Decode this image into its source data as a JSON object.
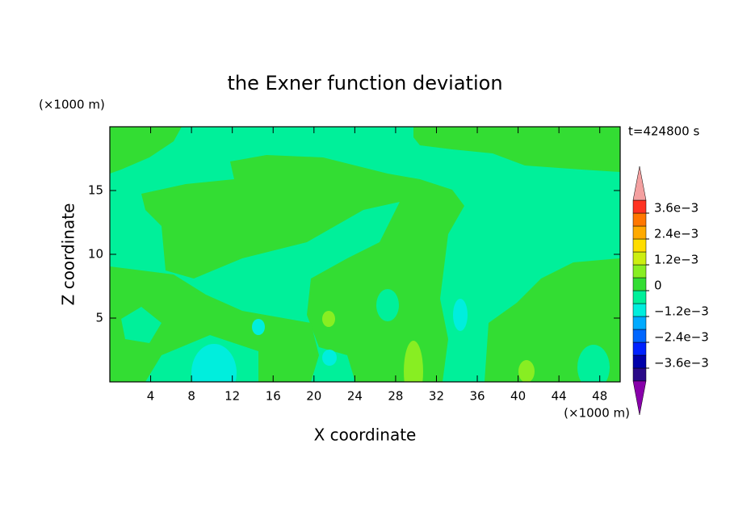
{
  "chart_data": {
    "type": "contour",
    "title": "the Exner function deviation",
    "x_label": "X coordinate",
    "y_label": "Z coordinate",
    "x_unit": "(×1000 m)",
    "y_unit": "(×1000 m)",
    "time_label": "t=424800 s",
    "xlim": [
      0,
      50
    ],
    "ylim": [
      0,
      20
    ],
    "xticks": [
      4,
      8,
      12,
      16,
      20,
      24,
      28,
      32,
      36,
      40,
      44,
      48
    ],
    "yticks": [
      5,
      10,
      15
    ],
    "colorbar": {
      "levels": [
        -0.0042,
        -0.0036,
        -0.003,
        -0.0024,
        -0.0018,
        -0.0012,
        -0.0006,
        0,
        0.0006,
        0.0012,
        0.0018,
        0.0024,
        0.003,
        0.0036,
        0.0042
      ],
      "colors": [
        "#2a0a88",
        "#0000aa",
        "#0022ff",
        "#0066ff",
        "#00aaff",
        "#00eedd",
        "#00f09a",
        "#33dd33",
        "#88ee22",
        "#ccee11",
        "#ffdd00",
        "#ffaa00",
        "#ff7700",
        "#ff3322"
      ],
      "under_color": "#8800aa",
      "over_color": "#f4a0a0",
      "ticks": [
        {
          "value": -0.0036,
          "label": "−3.6e−3"
        },
        {
          "value": -0.0024,
          "label": "−2.4e−3"
        },
        {
          "value": -0.0012,
          "label": "−1.2e−3"
        },
        0,
        {
          "value": 0.0012,
          "label": "1.2e−3"
        },
        {
          "value": 0.0024,
          "label": "2.4e−3"
        },
        {
          "value": 0.0036,
          "label": "3.6e−3"
        }
      ]
    }
  }
}
